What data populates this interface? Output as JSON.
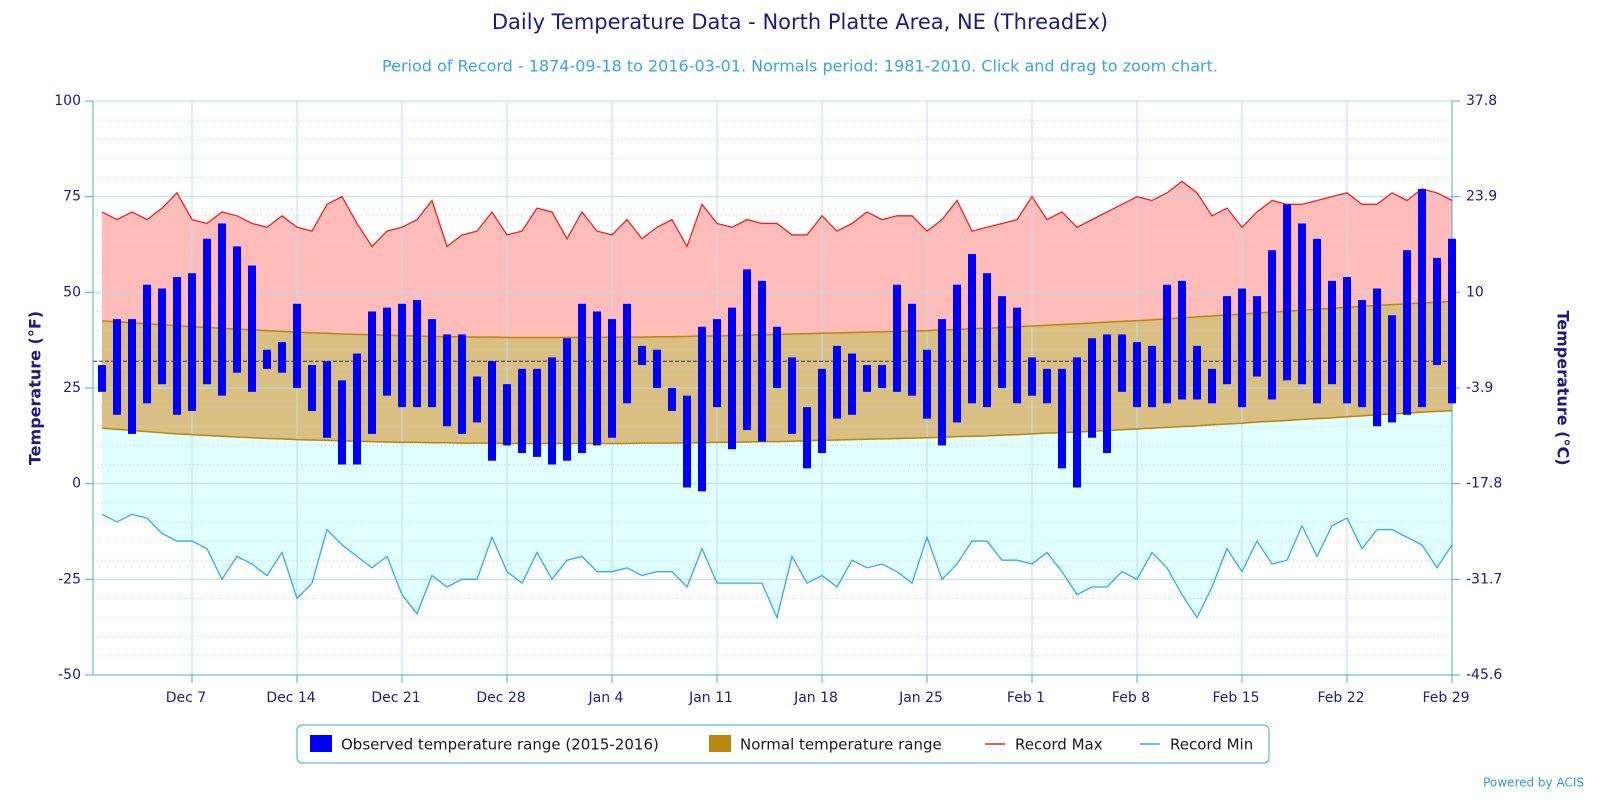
{
  "chart_data": {
    "type": "combo",
    "title": "Daily Temperature Data - North Platte Area, NE (ThreadEx)",
    "subtitle": "Period of Record - 1874-09-18 to 2016-03-01. Normals period: 1981-2010. Click and drag to zoom chart.",
    "ylabel": "Temperature (°F)",
    "y2label": "Temperature (°C)",
    "credit": "Powered by ACIS",
    "categories": [
      null,
      null,
      null,
      null,
      null,
      null,
      "Dec 7",
      null,
      null,
      null,
      null,
      null,
      null,
      "Dec 14",
      null,
      null,
      null,
      null,
      null,
      null,
      "Dec 21",
      null,
      null,
      null,
      null,
      null,
      null,
      "Dec 28",
      null,
      null,
      null,
      null,
      null,
      null,
      "Jan 4",
      null,
      null,
      null,
      null,
      null,
      null,
      "Jan 11",
      null,
      null,
      null,
      null,
      null,
      null,
      "Jan 18",
      null,
      null,
      null,
      null,
      null,
      null,
      "Jan 25",
      null,
      null,
      null,
      null,
      null,
      null,
      "Feb 1",
      null,
      null,
      null,
      null,
      null,
      null,
      "Feb 8",
      null,
      null,
      null,
      null,
      null,
      null,
      "Feb 15",
      null,
      null,
      null,
      null,
      null,
      null,
      "Feb 22",
      null,
      null,
      null,
      null,
      null,
      null,
      "Feb 29"
    ],
    "ylim": [
      -50,
      100
    ],
    "yticks": [
      -50,
      -25,
      0,
      25,
      50,
      75,
      100
    ],
    "y2lim": [
      -45.6,
      37.8
    ],
    "y2ticks": [
      -45.6,
      -31.7,
      -17.8,
      -3.9,
      10,
      23.9,
      37.8
    ],
    "plot_line": 32,
    "grid": true,
    "series": [
      {
        "name": "Observed temperature range (2015-2016)",
        "type": "columnrange",
        "color": "#0000ff",
        "high": [
          31,
          43,
          43,
          52,
          51,
          54,
          55,
          64,
          68,
          62,
          57,
          35,
          37,
          47,
          31,
          32,
          27,
          34,
          45,
          46,
          47,
          48,
          43,
          39,
          39,
          28,
          32,
          26,
          30,
          30,
          33,
          38,
          47,
          45,
          43,
          47,
          36,
          35,
          25,
          23,
          41,
          43,
          46,
          56,
          53,
          41,
          33,
          20,
          30,
          36,
          34,
          31,
          31,
          52,
          47,
          35,
          43,
          52,
          60,
          55,
          49,
          46,
          33,
          30,
          30,
          33,
          38,
          39,
          39,
          37,
          36,
          52,
          53,
          36,
          30,
          49,
          51,
          49,
          61,
          73,
          68,
          64,
          53,
          54,
          48,
          51,
          44,
          61,
          77,
          59,
          64
        ],
        "low": [
          24,
          18,
          13,
          21,
          26,
          18,
          19,
          26,
          23,
          29,
          24,
          30,
          29,
          25,
          19,
          12,
          5,
          5,
          13,
          23,
          20,
          20,
          20,
          15,
          13,
          16,
          6,
          10,
          8,
          7,
          5,
          6,
          8,
          10,
          12,
          21,
          31,
          25,
          19,
          -1,
          -2,
          20,
          9,
          14,
          11,
          25,
          13,
          4,
          8,
          17,
          18,
          24,
          25,
          24,
          23,
          17,
          10,
          16,
          21,
          20,
          25,
          21,
          23,
          21,
          4,
          -1,
          12,
          8,
          24,
          20,
          20,
          21,
          22,
          22,
          21,
          26,
          20,
          28,
          22,
          27,
          26,
          21,
          26,
          21,
          20,
          15,
          16,
          18,
          20,
          31,
          21
        ]
      },
      {
        "name": "Normal temperature range",
        "type": "arearange",
        "color": "#b8860b",
        "fill": "#d9bf82",
        "high": [
          42.5,
          42.3,
          42.0,
          41.8,
          41.5,
          41.3,
          41.0,
          40.8,
          40.6,
          40.4,
          40.2,
          40.0,
          39.8,
          39.6,
          39.4,
          39.3,
          39.1,
          39.0,
          38.9,
          38.8,
          38.7,
          38.6,
          38.5,
          38.4,
          38.4,
          38.3,
          38.3,
          38.2,
          38.2,
          38.2,
          38.2,
          38.2,
          38.2,
          38.2,
          38.3,
          38.3,
          38.3,
          38.4,
          38.4,
          38.5,
          38.6,
          38.6,
          38.7,
          38.8,
          38.9,
          39.0,
          39.1,
          39.2,
          39.3,
          39.4,
          39.5,
          39.6,
          39.7,
          39.8,
          39.9,
          40.0,
          40.2,
          40.3,
          40.5,
          40.6,
          40.8,
          41.0,
          41.2,
          41.4,
          41.6,
          41.8,
          42.0,
          42.2,
          42.4,
          42.6,
          42.8,
          43.1,
          43.3,
          43.6,
          43.8,
          44.1,
          44.3,
          44.6,
          44.8,
          45.1,
          45.3,
          45.6,
          45.8,
          46.1,
          46.3,
          46.6,
          46.8,
          47.0,
          47.2,
          47.4,
          47.6
        ],
        "low": [
          14.5,
          14.2,
          13.9,
          13.6,
          13.3,
          13.0,
          12.8,
          12.6,
          12.4,
          12.2,
          12.0,
          11.8,
          11.7,
          11.5,
          11.4,
          11.3,
          11.2,
          11.1,
          11.0,
          10.9,
          10.8,
          10.8,
          10.7,
          10.7,
          10.6,
          10.6,
          10.6,
          10.5,
          10.5,
          10.5,
          10.5,
          10.5,
          10.5,
          10.5,
          10.5,
          10.5,
          10.6,
          10.6,
          10.6,
          10.7,
          10.7,
          10.8,
          10.8,
          10.9,
          11.0,
          11.0,
          11.1,
          11.2,
          11.3,
          11.4,
          11.5,
          11.6,
          11.7,
          11.8,
          11.9,
          12.0,
          12.1,
          12.3,
          12.4,
          12.5,
          12.7,
          12.8,
          13.0,
          13.2,
          13.3,
          13.5,
          13.7,
          13.9,
          14.1,
          14.3,
          14.5,
          14.7,
          14.9,
          15.1,
          15.4,
          15.6,
          15.8,
          16.1,
          16.3,
          16.5,
          16.8,
          17.0,
          17.2,
          17.5,
          17.7,
          18.0,
          18.2,
          18.4,
          18.7,
          18.9,
          19.1
        ]
      },
      {
        "name": "Record Max",
        "type": "line",
        "color": "#ee2222",
        "fill": "#ffbcb8",
        "values": [
          71,
          69,
          71,
          69,
          72,
          76,
          69,
          68,
          71,
          70,
          68,
          67,
          70,
          67,
          66,
          73,
          75,
          68,
          62,
          66,
          67,
          69,
          74,
          62,
          65,
          66,
          71,
          65,
          66,
          72,
          71,
          64,
          71,
          66,
          65,
          69,
          64,
          67,
          69,
          62,
          73,
          68,
          67,
          69,
          68,
          68,
          65,
          65,
          70,
          66,
          68,
          71,
          69,
          70,
          70,
          66,
          69,
          74,
          66,
          67,
          68,
          69,
          75,
          69,
          71,
          67,
          69,
          71,
          73,
          75,
          74,
          76,
          79,
          76,
          70,
          72,
          67,
          71,
          74,
          73,
          73,
          74,
          75,
          76,
          73,
          73,
          76,
          74,
          77,
          76,
          74
        ]
      },
      {
        "name": "Record Min",
        "type": "line",
        "color": "#33aaee",
        "fill": "#e0ffff",
        "values": [
          -8,
          -10,
          -8,
          -9,
          -13,
          -15,
          -15,
          -17,
          -25,
          -19,
          -21,
          -24,
          -18,
          -30,
          -26,
          -12,
          -16,
          -19,
          -22,
          -19,
          -29,
          -34,
          -24,
          -27,
          -25,
          -25,
          -14,
          -23,
          -26,
          -18,
          -25,
          -20,
          -19,
          -23,
          -23,
          -22,
          -24,
          -23,
          -23,
          -27,
          -17,
          -26,
          -26,
          -26,
          -26,
          -35,
          -19,
          -26,
          -24,
          -27,
          -20,
          -22,
          -21,
          -23,
          -26,
          -14,
          -25,
          -21,
          -15,
          -15,
          -20,
          -20,
          -21,
          -18,
          -23,
          -29,
          -27,
          -27,
          -23,
          -25,
          -18,
          -22,
          -29,
          -35,
          -27,
          -17,
          -23,
          -15,
          -21,
          -20,
          -11,
          -19,
          -11,
          -9,
          -17,
          -12,
          -12,
          -14,
          -16,
          -22,
          -16
        ]
      }
    ]
  }
}
